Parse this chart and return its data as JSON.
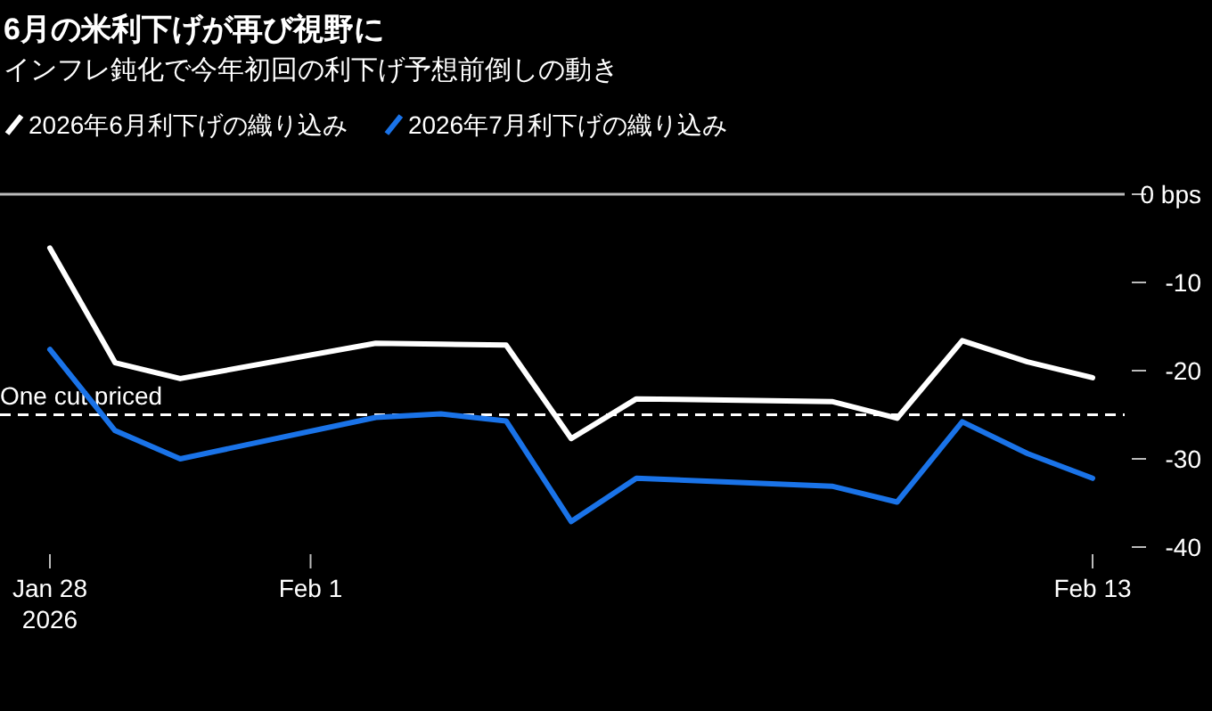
{
  "chart_data": {
    "type": "line",
    "title": "6月の米利下げが再び視野に",
    "subtitle": "インフレ鈍化で今年初回の利下げ予想前倒しの動き",
    "x": [
      "2026-01-28",
      "2026-01-29",
      "2026-01-30",
      "2026-02-02",
      "2026-02-03",
      "2026-02-04",
      "2026-02-05",
      "2026-02-06",
      "2026-02-09",
      "2026-02-10",
      "2026-02-11",
      "2026-02-12",
      "2026-02-13"
    ],
    "series": [
      {
        "name": "2026年6月利下げの織り込み",
        "color": "#ffffff",
        "values": [
          -6.1,
          -19.1,
          -20.9,
          -16.9,
          -17.0,
          -17.1,
          -27.7,
          -23.2,
          -23.5,
          -25.4,
          -16.6,
          -19.0,
          -20.8
        ]
      },
      {
        "name": "2026年7月利下げの織り込み",
        "color": "#1a73e8",
        "values": [
          -17.6,
          -26.8,
          -30.0,
          -25.3,
          -24.9,
          -25.7,
          -37.1,
          -32.2,
          -33.1,
          -34.9,
          -25.8,
          -29.4,
          -32.2
        ]
      }
    ],
    "xlim": [
      "2026-01-28",
      "2026-02-13"
    ],
    "xticks": [
      {
        "value": "2026-01-28",
        "label": "Jan 28\n2026"
      },
      {
        "value": "2026-02-01",
        "label": "Feb 1"
      },
      {
        "value": "2026-02-13",
        "label": "Feb 13"
      }
    ],
    "ylim": [
      -40,
      0
    ],
    "yticks": [
      {
        "value": 0,
        "label": "0 bps"
      },
      -10,
      -20,
      -30,
      -40
    ],
    "ref_lines": [
      {
        "axis": "y",
        "value": 0,
        "color": "#bbbbbb",
        "line_style": "solid"
      },
      {
        "axis": "y",
        "value": -25,
        "label": "One cut priced",
        "color": "#ffffff",
        "line_style": "dashed"
      }
    ],
    "legend": "top left"
  }
}
